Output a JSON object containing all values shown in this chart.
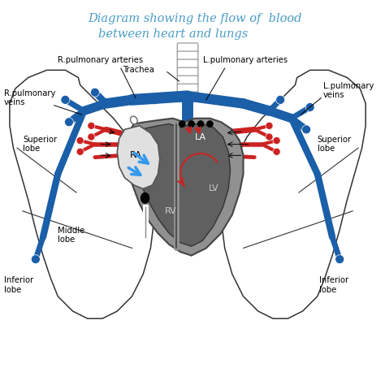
{
  "title_line1": "Diagram showing the flow of  blood",
  "title_line2": "between heart and lungs",
  "title_color": "#4a9cc8",
  "bg_color": "#ffffff",
  "lung_outline": "#333333",
  "blue_vessel_color": "#1a5fa8",
  "red_vessel_color": "#cc2222",
  "dark_gray": "#606060",
  "mid_gray": "#909090",
  "light_gray": "#d8d8d8",
  "trachea_color": "#aaaaaa",
  "labels": {
    "R_pulm_art": "R.pulmonary arteries",
    "L_pulm_art": "L.pulmonary arteries",
    "Trachea": "Trachea",
    "R_pulm_vein": "R.pulmonary\nveins",
    "L_pulm_vein": "L.pulmonary\nveins",
    "Superior_lobe_L": "Superior\nlobe",
    "Superior_lobe_R": "Superior\nlobe",
    "Middle_lobe": "Middle\nlobe",
    "Inferior_lobe_L": "Inferior\nlobe",
    "Inferior_lobe_R": "Inferior\nlobe",
    "RA": "RA",
    "LA": "LA",
    "RV": "RV",
    "LV": "LV"
  }
}
